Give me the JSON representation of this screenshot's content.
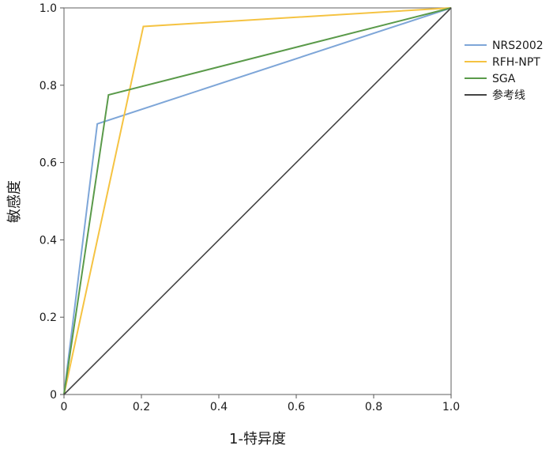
{
  "chart_data": {
    "type": "line",
    "title": "",
    "xlabel": "1-特异度",
    "ylabel": "敏感度",
    "xlim": [
      0,
      1
    ],
    "ylim": [
      0,
      1
    ],
    "grid": false,
    "legend_position": "right",
    "x_ticks": [
      "0",
      "0.2",
      "0.4",
      "0.6",
      "0.8",
      "1.0"
    ],
    "y_ticks": [
      "0",
      "0.2",
      "0.4",
      "0.6",
      "0.8",
      "1.0"
    ],
    "series": [
      {
        "name": "NRS2002",
        "color": "#7ea6d8",
        "points": [
          [
            0,
            0
          ],
          [
            0.086,
            0.7
          ],
          [
            1.0,
            1.0
          ]
        ]
      },
      {
        "name": "RFH-NPT",
        "color": "#f5c342",
        "points": [
          [
            0,
            0
          ],
          [
            0.205,
            0.952
          ],
          [
            1.0,
            1.0
          ]
        ]
      },
      {
        "name": "SGA",
        "color": "#5a9a4a",
        "points": [
          [
            0,
            0
          ],
          [
            0.115,
            0.775
          ],
          [
            1.0,
            1.0
          ]
        ]
      },
      {
        "name": "参考线",
        "color": "#444444",
        "points": [
          [
            0,
            0
          ],
          [
            1.0,
            1.0
          ]
        ]
      }
    ]
  }
}
